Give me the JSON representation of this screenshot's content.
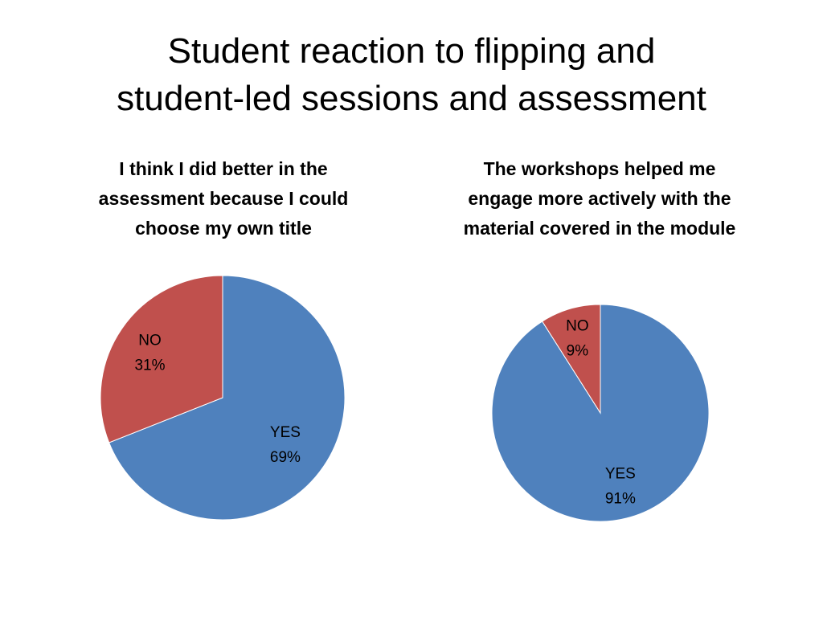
{
  "slide": {
    "title_line1": "Student reaction to flipping and",
    "title_line2": "student-led sessions and assessment"
  },
  "colors": {
    "yes": "#4f81bd",
    "no": "#c0504d"
  },
  "chart_data": [
    {
      "type": "pie",
      "title": "I think I did better in the assessment because I could choose my own title",
      "labels": [
        "YES",
        "NO"
      ],
      "values": [
        69,
        31
      ],
      "value_labels": [
        "69%",
        "31%"
      ],
      "colors": [
        "#4f81bd",
        "#c0504d"
      ],
      "start_angle": "12 o'clock",
      "direction": "clockwise",
      "legend": "none",
      "data_labels": "inside"
    },
    {
      "type": "pie",
      "title": "The workshops helped me engage more actively with the material covered in the module",
      "labels": [
        "YES",
        "NO"
      ],
      "values": [
        91,
        9
      ],
      "value_labels": [
        "91%",
        "9%"
      ],
      "colors": [
        "#4f81bd",
        "#c0504d"
      ],
      "start_angle": "12 o'clock",
      "direction": "clockwise",
      "legend": "none",
      "data_labels": "inside"
    }
  ]
}
